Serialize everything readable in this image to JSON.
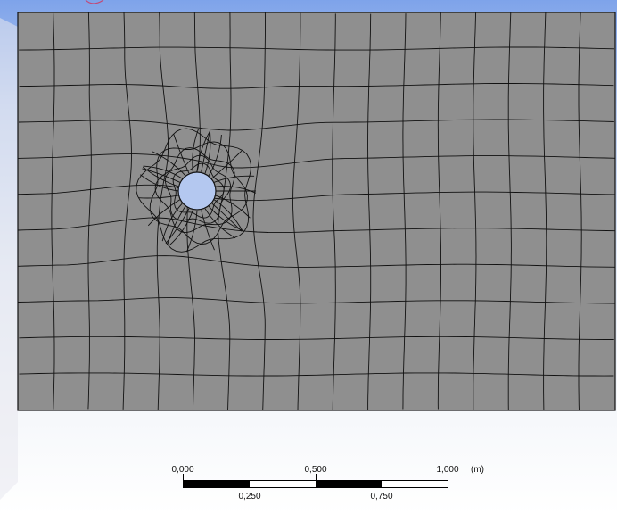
{
  "viewport": {
    "mesh_name": "2D quadrilateral mesh around circular hole",
    "colors": {
      "background_top": "#7ea3ea",
      "background_bottom": "#ffffff",
      "domain_fill": "#8f8f8f",
      "mesh_line": "#111111",
      "hole_fill": "#b4c8f0",
      "corner_watermark": "#e8e8ee"
    }
  },
  "scale_bar": {
    "top_labels": [
      "0,000",
      "0,500",
      "1,000"
    ],
    "bottom_labels": [
      "0,250",
      "0,750"
    ],
    "unit": "(m)"
  },
  "icons": {
    "triad_fragment": "axis-triad-icon"
  }
}
